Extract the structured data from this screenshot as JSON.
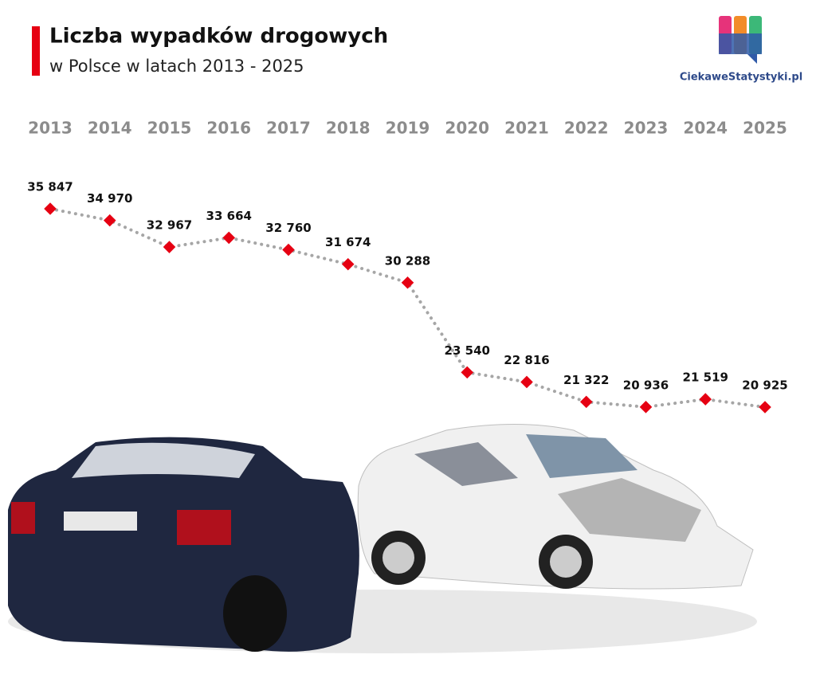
{
  "chart_data": {
    "type": "line",
    "title": "Liczba wypadków drogowych",
    "subtitle": "w Polsce w latach 2013 - 2025",
    "source": "CiekaweStatystyki.pl",
    "categories": [
      "2013",
      "2014",
      "2015",
      "2016",
      "2017",
      "2018",
      "2019",
      "2020",
      "2021",
      "2022",
      "2023",
      "2024",
      "2025"
    ],
    "values": [
      35847,
      34970,
      32967,
      33664,
      32760,
      31674,
      30288,
      23540,
      22816,
      21322,
      20936,
      21519,
      20925
    ],
    "value_labels": [
      "35 847",
      "34 970",
      "32 967",
      "33 664",
      "32 760",
      "31 674",
      "30 288",
      "23 540",
      "22 816",
      "21 322",
      "20 936",
      "21 519",
      "20 925"
    ],
    "color": "#e60012",
    "line_color": "#a6a6a6"
  }
}
